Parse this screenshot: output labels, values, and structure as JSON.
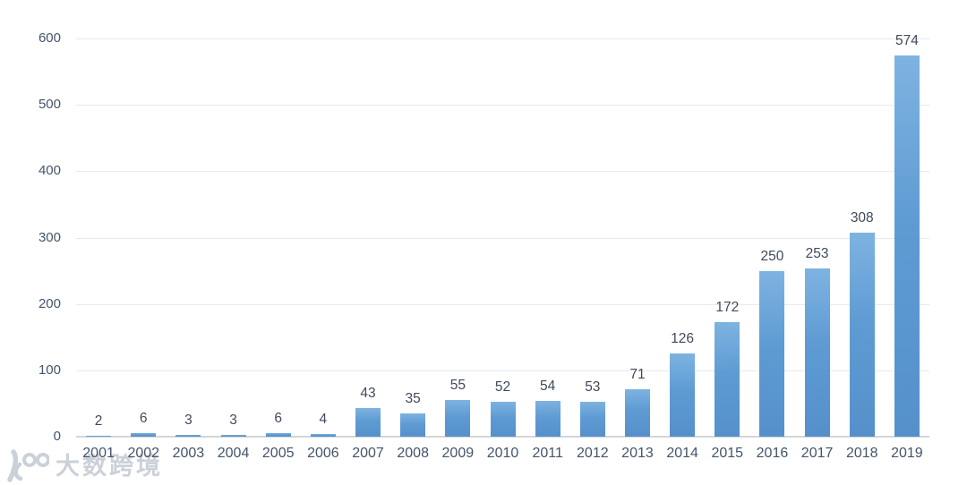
{
  "chart_data": {
    "type": "bar",
    "title": "",
    "xlabel": "",
    "ylabel": "",
    "categories": [
      "2001",
      "2002",
      "2003",
      "2004",
      "2005",
      "2006",
      "2007",
      "2008",
      "2009",
      "2010",
      "2011",
      "2012",
      "2013",
      "2014",
      "2015",
      "2016",
      "2017",
      "2018",
      "2019"
    ],
    "values": [
      2,
      6,
      3,
      3,
      6,
      4,
      43,
      35,
      55,
      52,
      54,
      53,
      71,
      126,
      172,
      250,
      253,
      308,
      574
    ],
    "ylim": [
      0,
      600
    ],
    "yticks": [
      0,
      100,
      200,
      300,
      400,
      500,
      600
    ],
    "grid": true,
    "legend": false,
    "value_labels_shown": true,
    "bar_color_top": "#7EB3E1",
    "bar_color_bottom": "#5590CA"
  },
  "colors": {
    "background": "#FFFFFF",
    "gridline": "#E8EAEC",
    "axis_line": "#D4D6D9",
    "tick_label": "#44546A",
    "value_label": "#404A5A",
    "watermark": "#CBD1D8"
  },
  "watermark": {
    "text": "大数跨境",
    "logo": "dashukuajing-logo"
  }
}
